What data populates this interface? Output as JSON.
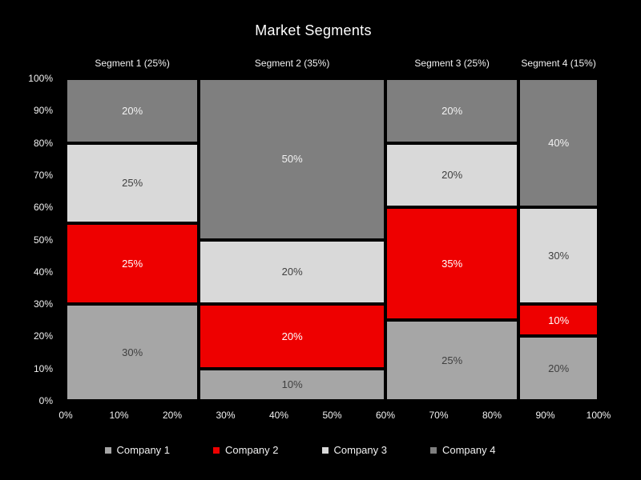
{
  "chart_data": {
    "type": "bar",
    "variant": "marimekko",
    "title": "Market Segments",
    "background_color": "#000000",
    "grid": false,
    "xlim": [
      0,
      100
    ],
    "ylim": [
      0,
      100
    ],
    "segments": [
      {
        "label": "Segment 1 (25%)",
        "width_pct": 25
      },
      {
        "label": "Segment 2 (35%)",
        "width_pct": 35
      },
      {
        "label": "Segment 3 (25%)",
        "width_pct": 25
      },
      {
        "label": "Segment 4 (15%)",
        "width_pct": 15
      }
    ],
    "series_bottom_to_top": [
      {
        "name": "Company 1",
        "color": "#a6a6a6",
        "text_color": "#404040",
        "values": [
          30,
          10,
          25,
          20
        ]
      },
      {
        "name": "Company 2",
        "color": "#ee0000",
        "text_color": "#ffffff",
        "values": [
          25,
          20,
          35,
          10
        ]
      },
      {
        "name": "Company 3",
        "color": "#d9d9d9",
        "text_color": "#404040",
        "values": [
          25,
          20,
          20,
          30
        ]
      },
      {
        "name": "Company 4",
        "color": "#7f7f7f",
        "text_color": "#f2f2f2",
        "values": [
          20,
          50,
          20,
          40
        ]
      }
    ],
    "block_label_suffix": "%",
    "y_ticks": [
      "0%",
      "10%",
      "20%",
      "30%",
      "40%",
      "50%",
      "60%",
      "70%",
      "80%",
      "90%",
      "100%"
    ],
    "x_ticks": [
      "0%",
      "10%",
      "20%",
      "30%",
      "40%",
      "50%",
      "60%",
      "70%",
      "80%",
      "90%",
      "100%"
    ],
    "legend": {
      "position": "bottom",
      "entries": [
        {
          "label": "Company 1",
          "color": "#a6a6a6"
        },
        {
          "label": "Company 2",
          "color": "#ee0000"
        },
        {
          "label": "Company 3",
          "color": "#d9d9d9"
        },
        {
          "label": "Company 4",
          "color": "#7f7f7f"
        }
      ]
    }
  }
}
